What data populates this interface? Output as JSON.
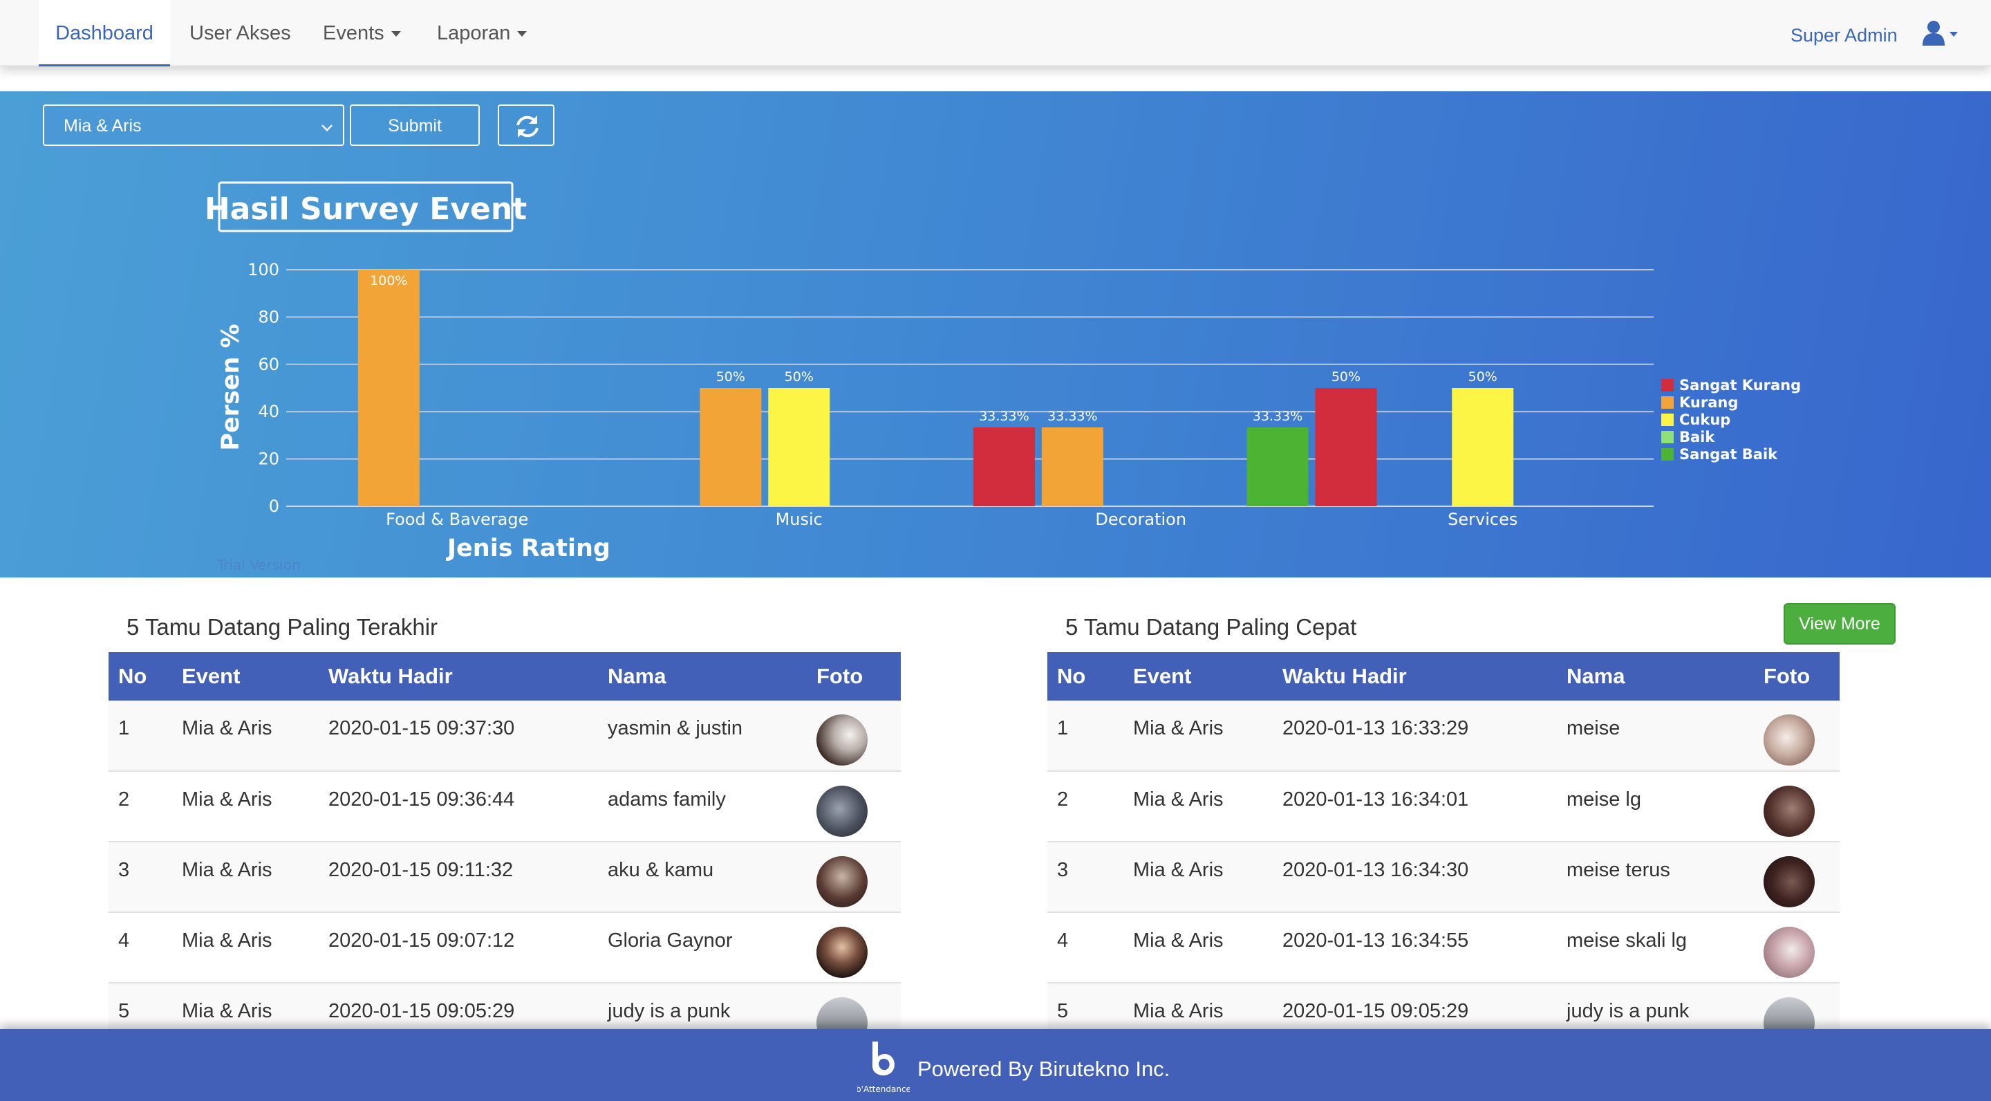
{
  "nav": {
    "items": [
      {
        "label": "Dashboard",
        "active": true
      },
      {
        "label": "User Akses"
      },
      {
        "label": "Events",
        "dropdown": true
      },
      {
        "label": "Laporan",
        "dropdown": true
      }
    ],
    "user_label": "Super Admin",
    "user_icon": "user-icon"
  },
  "filter": {
    "selected_event": "Mia & Aris",
    "submit_label": "Submit",
    "refresh_icon": "refresh-icon"
  },
  "chart_data": {
    "type": "bar",
    "title": "Hasil Survey Event",
    "xlabel": "Jenis Rating",
    "ylabel": "Persen %",
    "ylim": [
      0,
      100
    ],
    "yticks": [
      0,
      20,
      40,
      60,
      80,
      100
    ],
    "categories": [
      "Food & Baverage",
      "Music",
      "Decoration",
      "Services"
    ],
    "series": [
      {
        "name": "Sangat Kurang",
        "color": "#d22d3c",
        "values": [
          0,
          0,
          33.33,
          50
        ],
        "labels": [
          "",
          "",
          "33.33%",
          "50%"
        ]
      },
      {
        "name": "Kurang",
        "color": "#f2a436",
        "values": [
          100,
          50,
          33.33,
          0
        ],
        "labels": [
          "100%",
          "50%",
          "33.33%",
          ""
        ]
      },
      {
        "name": "Cukup",
        "color": "#fcf545",
        "values": [
          0,
          50,
          0,
          50
        ],
        "labels": [
          "",
          "50%",
          "",
          "50%"
        ]
      },
      {
        "name": "Baik",
        "color": "#90e07a",
        "values": [
          0,
          0,
          0,
          0
        ],
        "labels": [
          "",
          "",
          "",
          ""
        ]
      },
      {
        "name": "Sangat Baik",
        "color": "#4db333",
        "values": [
          0,
          0,
          33.33,
          0
        ],
        "labels": [
          "",
          "",
          "33.33%",
          ""
        ]
      }
    ],
    "grid": true,
    "legend": "right",
    "watermark": "Trial Version"
  },
  "latest": {
    "title": "5 Tamu Datang Paling Terakhir",
    "headers": [
      "No",
      "Event",
      "Waktu Hadir",
      "Nama",
      "Foto"
    ],
    "rows": [
      {
        "no": "1",
        "event": "Mia & Aris",
        "time": "2020-01-15 09:37:30",
        "name": "yasmin & justin"
      },
      {
        "no": "2",
        "event": "Mia & Aris",
        "time": "2020-01-15 09:36:44",
        "name": "adams family"
      },
      {
        "no": "3",
        "event": "Mia & Aris",
        "time": "2020-01-15 09:11:32",
        "name": "aku & kamu"
      },
      {
        "no": "4",
        "event": "Mia & Aris",
        "time": "2020-01-15 09:07:12",
        "name": "Gloria Gaynor"
      },
      {
        "no": "5",
        "event": "Mia & Aris",
        "time": "2020-01-15 09:05:29",
        "name": "judy is a punk"
      }
    ]
  },
  "fastest": {
    "title": "5 Tamu Datang Paling Cepat",
    "view_more_label": "View More",
    "headers": [
      "No",
      "Event",
      "Waktu Hadir",
      "Nama",
      "Foto"
    ],
    "rows": [
      {
        "no": "1",
        "event": "Mia & Aris",
        "time": "2020-01-13 16:33:29",
        "name": "meise"
      },
      {
        "no": "2",
        "event": "Mia & Aris",
        "time": "2020-01-13 16:34:01",
        "name": "meise lg"
      },
      {
        "no": "3",
        "event": "Mia & Aris",
        "time": "2020-01-13 16:34:30",
        "name": "meise terus"
      },
      {
        "no": "4",
        "event": "Mia & Aris",
        "time": "2020-01-13 16:34:55",
        "name": "meise skali lg"
      },
      {
        "no": "5",
        "event": "Mia & Aris",
        "time": "2020-01-15 09:05:29",
        "name": "judy is a punk"
      }
    ]
  },
  "footer": {
    "text": "Powered By Birutekno Inc.",
    "logo_caption": "b'Attendance"
  }
}
